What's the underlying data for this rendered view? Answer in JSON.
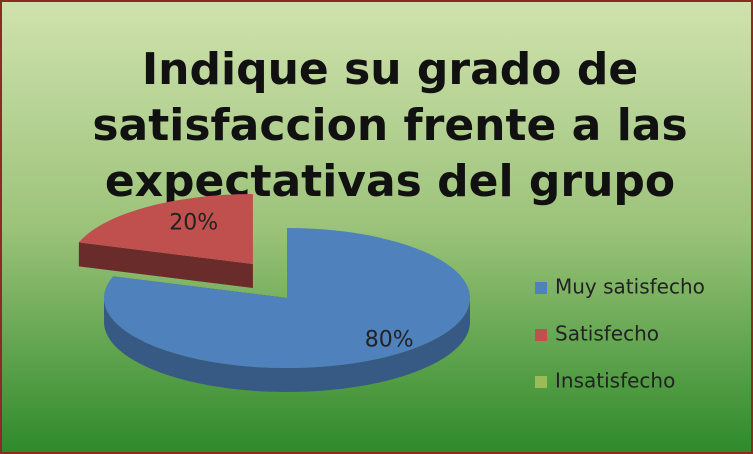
{
  "chart_data": {
    "type": "pie",
    "title_lines": [
      "Indique su grado de",
      "satisfaccion frente a las",
      "expectativas del grupo"
    ],
    "categories": [
      "Muy satisfecho",
      "Satisfecho",
      "Insatisfecho"
    ],
    "values": [
      80,
      20,
      0
    ],
    "value_labels": [
      "80%",
      "20%",
      null
    ],
    "colors": [
      "#4f81bd",
      "#c0504d",
      "#9bbb59"
    ],
    "legend": "right"
  }
}
